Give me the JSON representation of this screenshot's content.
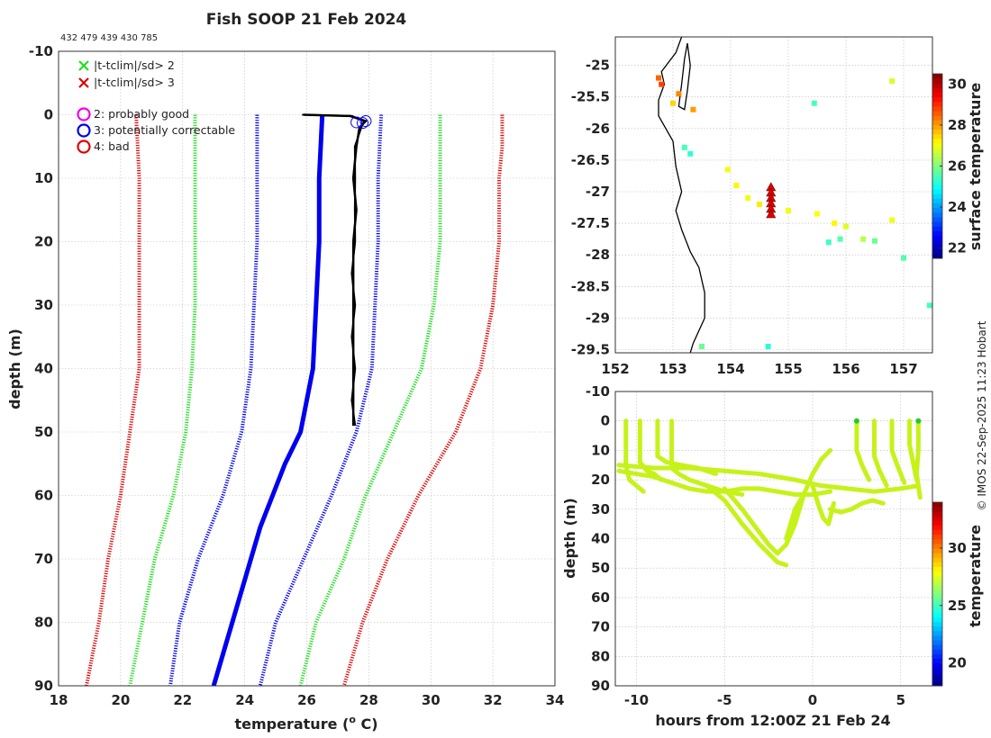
{
  "title": "Fish SOOP 21 Feb 2024",
  "id_line": "432 479 439 430 785",
  "credit": "© IMOS 22-Sep-2025 11:23 Hobart",
  "colors": {
    "red": "#e00000",
    "green": "#22dd22",
    "blue": "#0000ee",
    "black": "#000000",
    "magenta": "#ee00ee",
    "grid": "#bbbbbb",
    "track": "#c6f21a"
  },
  "chart_data": [
    {
      "id": "profile",
      "type": "line",
      "xlabel": "temperature (o C)",
      "xlabel_main": "temperature (",
      "xlabel_sup": "o",
      "xlabel_end": " C)",
      "ylabel": "depth (m)",
      "xlim": [
        18,
        34
      ],
      "ylim": [
        -10,
        90
      ],
      "xticks": [
        "18",
        "20",
        "22",
        "24",
        "26",
        "28",
        "30",
        "32",
        "34"
      ],
      "yticks": [
        "-10",
        "0",
        "10",
        "20",
        "30",
        "40",
        "50",
        "60",
        "70",
        "80",
        "90"
      ],
      "legend": [
        {
          "marker": "x",
          "color": "#22dd22",
          "label": "|t-tclim|/sd> 2"
        },
        {
          "marker": "x",
          "color": "#e00000",
          "label": "|t-tclim|/sd> 3"
        },
        {
          "marker": "o",
          "color": "#ee00ee",
          "label": "2: probably good"
        },
        {
          "marker": "o",
          "color": "#0000ee",
          "label": "3: potentially correctable"
        },
        {
          "marker": "o",
          "color": "#e00000",
          "label": "4: bad"
        }
      ],
      "series": [
        {
          "name": "clim -3sd",
          "color": "#e00000",
          "style": "dotted",
          "depth": [
            0,
            10,
            20,
            30,
            40,
            50,
            60,
            70,
            80,
            90
          ],
          "temp": [
            20.5,
            20.6,
            20.6,
            20.6,
            20.6,
            20.3,
            20.0,
            19.6,
            19.3,
            18.9
          ]
        },
        {
          "name": "clim -2sd",
          "color": "#22dd22",
          "style": "dotted",
          "depth": [
            0,
            10,
            20,
            30,
            40,
            50,
            60,
            70,
            80,
            90
          ],
          "temp": [
            22.4,
            22.4,
            22.4,
            22.4,
            22.3,
            22.1,
            21.7,
            21.1,
            20.7,
            20.3
          ]
        },
        {
          "name": "clim -1sd",
          "color": "#0000ee",
          "style": "dotted",
          "depth": [
            0,
            10,
            20,
            30,
            40,
            50,
            60,
            70,
            80,
            90
          ],
          "temp": [
            24.4,
            24.4,
            24.4,
            24.3,
            24.2,
            23.9,
            23.3,
            22.5,
            21.9,
            21.6
          ]
        },
        {
          "name": "clim mean",
          "color": "#0000ee",
          "style": "thick",
          "depth": [
            0,
            10,
            20,
            30,
            40,
            50,
            55,
            60,
            65,
            70,
            75,
            80,
            85,
            90
          ],
          "temp": [
            26.5,
            26.4,
            26.4,
            26.3,
            26.2,
            25.8,
            25.3,
            24.9,
            24.5,
            24.2,
            23.9,
            23.6,
            23.3,
            23.0
          ]
        },
        {
          "name": "clim +1sd",
          "color": "#0000ee",
          "style": "dotted",
          "depth": [
            0,
            10,
            20,
            30,
            40,
            50,
            60,
            70,
            80,
            90
          ],
          "temp": [
            28.4,
            28.3,
            28.3,
            28.2,
            28.1,
            27.6,
            26.8,
            25.9,
            25.0,
            24.5
          ]
        },
        {
          "name": "clim +2sd",
          "color": "#22dd22",
          "style": "dotted",
          "depth": [
            0,
            5,
            10,
            20,
            30,
            40,
            50,
            60,
            70,
            80,
            90
          ],
          "temp": [
            30.3,
            30.3,
            30.3,
            30.3,
            30.1,
            29.7,
            28.8,
            27.9,
            27.2,
            26.3,
            25.8
          ]
        },
        {
          "name": "clim +3sd",
          "color": "#e00000",
          "style": "dotted",
          "depth": [
            0,
            5,
            10,
            20,
            30,
            40,
            50,
            60,
            70,
            80,
            90
          ],
          "temp": [
            32.3,
            32.3,
            32.2,
            32.2,
            32.0,
            31.6,
            30.8,
            29.6,
            28.6,
            27.8,
            27.2
          ]
        },
        {
          "name": "observed",
          "color": "#000000",
          "style": "solid",
          "depth": [
            0,
            0.2,
            1,
            2,
            5,
            10,
            15,
            20,
            25,
            30,
            35,
            40,
            45,
            49
          ],
          "temp": [
            25.9,
            27.4,
            27.9,
            27.7,
            27.6,
            27.5,
            27.6,
            27.5,
            27.5,
            27.5,
            27.5,
            27.5,
            27.5,
            27.5
          ]
        }
      ],
      "flags": {
        "color": "#0000ee",
        "points": [
          {
            "temp": 27.6,
            "depth": 1.2
          },
          {
            "temp": 27.8,
            "depth": 1.3
          },
          {
            "temp": 27.9,
            "depth": 1.0
          }
        ]
      }
    },
    {
      "id": "map",
      "type": "scatter",
      "xlim": [
        152,
        157.5
      ],
      "ylim": [
        -29.55,
        -24.55
      ],
      "xticks": [
        "152",
        "153",
        "154",
        "155",
        "156",
        "157"
      ],
      "yticks": [
        "-25",
        "-25.5",
        "-26",
        "-26.5",
        "-27",
        "-27.5",
        "-28",
        "-28.5",
        "-29",
        "-29.5"
      ],
      "colorbar_label": "surface temperature",
      "colorbar_ticks": [
        "22",
        "24",
        "26",
        "28",
        "30"
      ],
      "colorbar_range": [
        21.5,
        30.5
      ],
      "coast": [
        [
          153.15,
          -24.55
        ],
        [
          153.05,
          -24.8
        ],
        [
          152.8,
          -25.1
        ],
        [
          152.85,
          -25.3
        ],
        [
          152.75,
          -25.55
        ],
        [
          152.75,
          -25.8
        ],
        [
          153.0,
          -26.2
        ],
        [
          153.05,
          -26.6
        ],
        [
          153.15,
          -27.0
        ],
        [
          153.05,
          -27.3
        ],
        [
          153.15,
          -27.6
        ],
        [
          153.3,
          -27.95
        ],
        [
          153.45,
          -28.2
        ],
        [
          153.55,
          -28.6
        ],
        [
          153.55,
          -29.0
        ],
        [
          153.35,
          -29.4
        ],
        [
          153.3,
          -29.55
        ]
      ],
      "island": [
        [
          153.25,
          -24.65
        ],
        [
          153.3,
          -25.0
        ],
        [
          153.25,
          -25.4
        ],
        [
          153.2,
          -25.7
        ],
        [
          153.1,
          -25.65
        ],
        [
          153.15,
          -25.3
        ],
        [
          153.2,
          -24.9
        ],
        [
          153.25,
          -24.65
        ]
      ],
      "points": [
        {
          "lon": 152.75,
          "lat": -25.2,
          "t": 28.5
        },
        {
          "lon": 152.8,
          "lat": -25.3,
          "t": 28.8
        },
        {
          "lon": 153.1,
          "lat": -25.45,
          "t": 28.2
        },
        {
          "lon": 153.0,
          "lat": -25.6,
          "t": 27.5
        },
        {
          "lon": 153.35,
          "lat": -25.7,
          "t": 28.0
        },
        {
          "lon": 153.2,
          "lat": -26.3,
          "t": 25.5
        },
        {
          "lon": 153.3,
          "lat": -26.4,
          "t": 25.3
        },
        {
          "lon": 153.95,
          "lat": -26.65,
          "t": 27.0
        },
        {
          "lon": 154.1,
          "lat": -26.9,
          "t": 27.2
        },
        {
          "lon": 154.3,
          "lat": -27.1,
          "t": 27.0
        },
        {
          "lon": 154.5,
          "lat": -27.2,
          "t": 27.3
        },
        {
          "lon": 154.7,
          "lat": -27.1,
          "t": 25.8
        },
        {
          "lon": 154.7,
          "lat": -27.3,
          "t": 25.5
        },
        {
          "lon": 155.0,
          "lat": -27.3,
          "t": 27.0
        },
        {
          "lon": 155.5,
          "lat": -27.35,
          "t": 27.1
        },
        {
          "lon": 155.8,
          "lat": -27.5,
          "t": 27.2
        },
        {
          "lon": 156.0,
          "lat": -27.55,
          "t": 26.8
        },
        {
          "lon": 155.7,
          "lat": -27.8,
          "t": 25.4
        },
        {
          "lon": 155.9,
          "lat": -27.75,
          "t": 25.6
        },
        {
          "lon": 156.3,
          "lat": -27.75,
          "t": 26.5
        },
        {
          "lon": 156.5,
          "lat": -27.78,
          "t": 25.8
        },
        {
          "lon": 156.8,
          "lat": -27.45,
          "t": 27.0
        },
        {
          "lon": 157.0,
          "lat": -28.05,
          "t": 25.6
        },
        {
          "lon": 156.8,
          "lat": -25.25,
          "t": 26.8
        },
        {
          "lon": 155.45,
          "lat": -25.6,
          "t": 25.5
        },
        {
          "lon": 153.5,
          "lat": -29.45,
          "t": 25.8
        },
        {
          "lon": 154.65,
          "lat": -29.45,
          "t": 25.2
        },
        {
          "lon": 157.45,
          "lat": -28.8,
          "t": 25.5
        }
      ],
      "station": {
        "lon": 154.7,
        "lat": -27.0,
        "color": "#e00000"
      }
    },
    {
      "id": "section",
      "type": "scatter",
      "xlabel": "hours from 12:00Z 21 Feb 24",
      "ylabel": "depth (m)",
      "xlim": [
        -11.2,
        6.8
      ],
      "ylim": [
        -10,
        90
      ],
      "xticks": [
        "-10",
        "-5",
        "0",
        "5"
      ],
      "yticks": [
        "-10",
        "0",
        "10",
        "20",
        "30",
        "40",
        "50",
        "60",
        "70",
        "80",
        "90"
      ],
      "colorbar_label": "temperature",
      "colorbar_ticks": [
        "20",
        "25",
        "30"
      ],
      "colorbar_range": [
        18,
        34
      ],
      "tracks": [
        {
          "x": [
            -10.6,
            -10.6,
            -10.4,
            -10.0,
            -9.6
          ],
          "d": [
            0,
            15,
            20,
            22,
            24
          ]
        },
        {
          "x": [
            -9.8,
            -9.8,
            -9.4,
            -9.0,
            -8.6
          ],
          "d": [
            0,
            14,
            17,
            18,
            20
          ]
        },
        {
          "x": [
            -8.8,
            -8.8,
            -8.3,
            -7.5,
            -6.5,
            -5.5
          ],
          "d": [
            0,
            12,
            14,
            15,
            16,
            18
          ]
        },
        {
          "x": [
            -8.0,
            -8.0,
            -7.6,
            -7.0,
            -6.0,
            -5.0,
            -4.0
          ],
          "d": [
            0,
            16,
            18,
            20,
            22,
            24,
            25
          ]
        },
        {
          "x": [
            -11.0,
            -10.0,
            -9.0,
            -8.0,
            -7.0,
            -6.0,
            -5.0,
            -4.0,
            -3.0,
            -2.0,
            -1.0,
            0,
            1.0
          ],
          "d": [
            17,
            18,
            19,
            21,
            23,
            24,
            24,
            23,
            23,
            24,
            25,
            25,
            24
          ]
        },
        {
          "x": [
            -11.0,
            -9.0,
            -7.0,
            -5.0,
            -3.0,
            -1.0,
            0.5,
            2.0,
            3.5,
            5.0,
            6.0
          ],
          "d": [
            15,
            16,
            16,
            17,
            18,
            20,
            22,
            23,
            24,
            23,
            22
          ]
        },
        {
          "x": [
            -6.0,
            -5.0,
            -4.0,
            -3.0,
            -2.5,
            -2.0,
            -1.5
          ],
          "d": [
            22,
            27,
            35,
            42,
            45,
            48,
            49
          ]
        },
        {
          "x": [
            -5.0,
            -4.0,
            -3.0,
            -2.5,
            -2.0,
            -1.5,
            -1.0,
            -0.5
          ],
          "d": [
            23,
            30,
            38,
            42,
            45,
            42,
            35,
            25
          ]
        },
        {
          "x": [
            -1.5,
            -1.0,
            -0.5,
            0.0,
            0.5,
            1.0
          ],
          "d": [
            40,
            30,
            25,
            18,
            13,
            10
          ]
        },
        {
          "x": [
            0,
            0.3,
            0.6,
            0.9,
            1.2
          ],
          "d": [
            22,
            28,
            33,
            35,
            28
          ]
        },
        {
          "x": [
            1.0,
            1.6,
            2.2,
            2.8,
            3.4,
            4.0
          ],
          "d": [
            30,
            31,
            30,
            28,
            27,
            28
          ]
        },
        {
          "x": [
            2.5,
            2.5,
            2.8,
            3.2
          ],
          "d": [
            0,
            10,
            15,
            20
          ]
        },
        {
          "x": [
            3.5,
            3.5,
            3.8,
            4.2
          ],
          "d": [
            0,
            12,
            17,
            22
          ]
        },
        {
          "x": [
            4.5,
            4.5,
            4.8,
            5.2
          ],
          "d": [
            0,
            10,
            15,
            21
          ]
        },
        {
          "x": [
            5.5,
            5.5,
            5.7,
            5.9
          ],
          "d": [
            0,
            8,
            14,
            20
          ]
        },
        {
          "x": [
            6.0,
            6.0,
            5.9,
            6.1
          ],
          "d": [
            0,
            10,
            18,
            26
          ]
        }
      ],
      "dots": [
        {
          "x": 2.5,
          "d": 0
        },
        {
          "x": 6.0,
          "d": 0
        }
      ]
    }
  ]
}
